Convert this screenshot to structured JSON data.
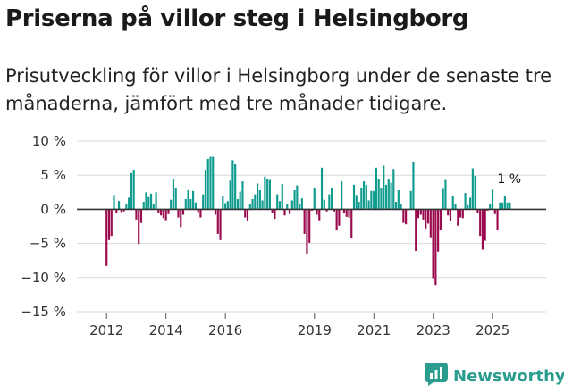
{
  "title": "Priserna på villor steg i Helsingborg",
  "subtitle": "Prisutveckling för villor i Helsingborg under de senaste tre månaderna, jämfört med tre månader tidigare.",
  "brand": {
    "name": "Newsworthy",
    "logo_icon": "newsworthy-logo-icon"
  },
  "colors": {
    "positive": "#0f9b8e",
    "negative": "#9b0a4e",
    "zero_line": "#333333",
    "grid": "#d9d9d9"
  },
  "chart_data": {
    "type": "bar",
    "title": "Priserna på villor steg i Helsingborg",
    "xlabel": "",
    "ylabel": "",
    "ylim": [
      -15,
      10
    ],
    "yticks": [
      10,
      5,
      0,
      -5,
      -10,
      -15
    ],
    "ytick_labels": [
      "10 %",
      "5 %",
      "0 %",
      "−5 %",
      "−10 %",
      "−15 %"
    ],
    "xlim": [
      2011.0,
      2026.8
    ],
    "xticks": [
      2012,
      2014,
      2016,
      2019,
      2021,
      2023,
      2025
    ],
    "xtick_labels": [
      "2012",
      "2014",
      "2016",
      "2019",
      "2021",
      "2023",
      "2025"
    ],
    "x_start": 2012.0,
    "x_step": 0.0833,
    "values": [
      -8.3,
      -4.5,
      -3.9,
      2.1,
      -0.5,
      1.2,
      -0.4,
      -0.3,
      0.8,
      1.7,
      5.3,
      5.8,
      -1.5,
      -5.1,
      -2.0,
      1.1,
      2.5,
      1.8,
      2.3,
      0.7,
      2.5,
      -0.6,
      -0.9,
      -1.3,
      -1.6,
      -0.7,
      1.4,
      4.4,
      3.1,
      -1.2,
      -2.6,
      -0.8,
      1.5,
      2.8,
      1.5,
      2.7,
      1.0,
      -0.4,
      -1.2,
      2.2,
      5.8,
      7.4,
      7.7,
      7.7,
      -0.8,
      -3.6,
      -4.5,
      2.0,
      0.9,
      1.2,
      4.2,
      7.2,
      6.6,
      1.5,
      2.6,
      4.1,
      -1.2,
      -1.7,
      0.8,
      1.5,
      2.2,
      3.8,
      2.8,
      1.3,
      4.8,
      4.5,
      4.3,
      -0.6,
      -1.4,
      2.2,
      1.2,
      3.7,
      -0.9,
      0.7,
      -0.7,
      1.3,
      2.8,
      3.5,
      0.8,
      1.6,
      -3.6,
      -6.5,
      -4.9,
      -0.2,
      3.2,
      -0.8,
      -1.6,
      6.1,
      1.4,
      -0.3,
      2.2,
      3.2,
      -0.3,
      -3.1,
      -2.4,
      4.1,
      -0.5,
      -1.1,
      -1.2,
      -4.2,
      3.6,
      2.1,
      1.1,
      3.2,
      4.1,
      3.6,
      1.3,
      2.7,
      2.7,
      6.1,
      4.5,
      3.1,
      6.4,
      3.6,
      4.4,
      3.9,
      5.9,
      1.1,
      2.8,
      0.8,
      -2.0,
      -2.2,
      -0.1,
      2.7,
      7.0,
      -6.1,
      -1.3,
      -0.8,
      -1.5,
      -2.8,
      -2.1,
      -4.1,
      -10.1,
      -11.1,
      -6.2,
      -3.1,
      3.0,
      4.3,
      -0.9,
      -1.7,
      1.9,
      0.8,
      -2.4,
      -1.2,
      -1.3,
      2.4,
      0.6,
      1.7,
      6.0,
      4.9,
      -0.6,
      -3.9,
      -5.9,
      -4.6,
      -0.2,
      0.8,
      2.9,
      -0.7,
      -3.1,
      1.0,
      1.0,
      2.0,
      1.0,
      1.0
    ],
    "annotation": "1 %"
  }
}
